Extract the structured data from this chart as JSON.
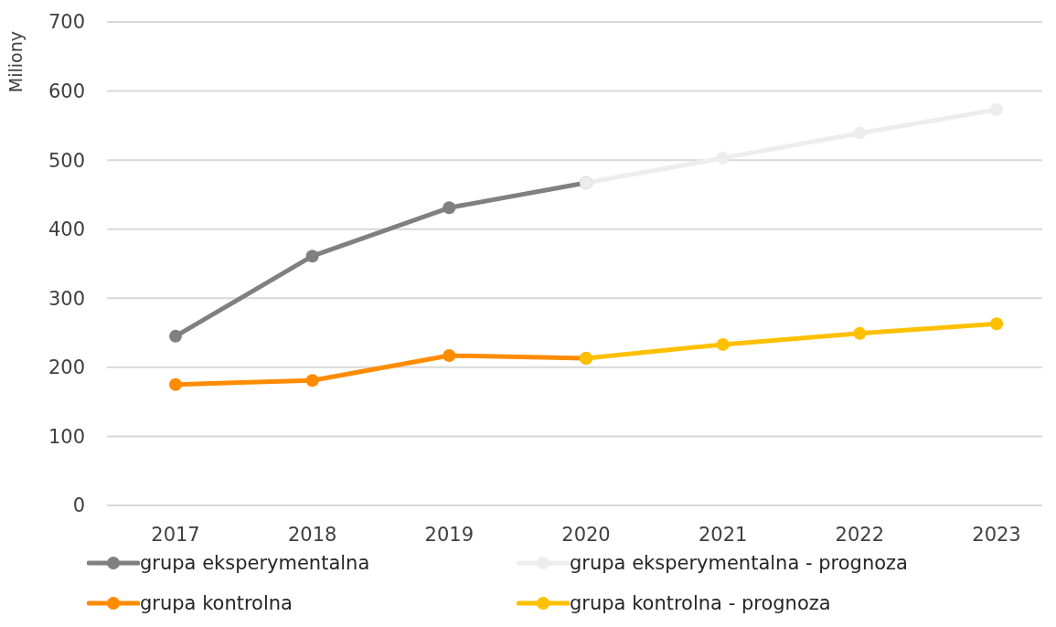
{
  "chart_data": {
    "type": "line",
    "ylabel": "Miliony",
    "categories": [
      "2017",
      "2018",
      "2019",
      "2020",
      "2021",
      "2022",
      "2023"
    ],
    "series": [
      {
        "name": "grupa eksperymentalna",
        "color": "#808080",
        "values": [
          245,
          361,
          431,
          467,
          null,
          null,
          null
        ]
      },
      {
        "name": "grupa eksperymentalna - prognoza",
        "color": "#ededed",
        "values": [
          null,
          null,
          null,
          467,
          503,
          539,
          573
        ]
      },
      {
        "name": "grupa kontrolna",
        "color": "#ff8c00",
        "values": [
          175,
          181,
          217,
          213,
          null,
          null,
          null
        ]
      },
      {
        "name": "grupa kontrolna - prognoza",
        "color": "#ffc000",
        "values": [
          null,
          null,
          null,
          213,
          233,
          249,
          263
        ]
      }
    ],
    "ylim": [
      0,
      700
    ],
    "yticks": [
      0,
      100,
      200,
      300,
      400,
      500,
      600,
      700
    ],
    "grid": "y",
    "legend": "bottom",
    "marker": "circle"
  }
}
